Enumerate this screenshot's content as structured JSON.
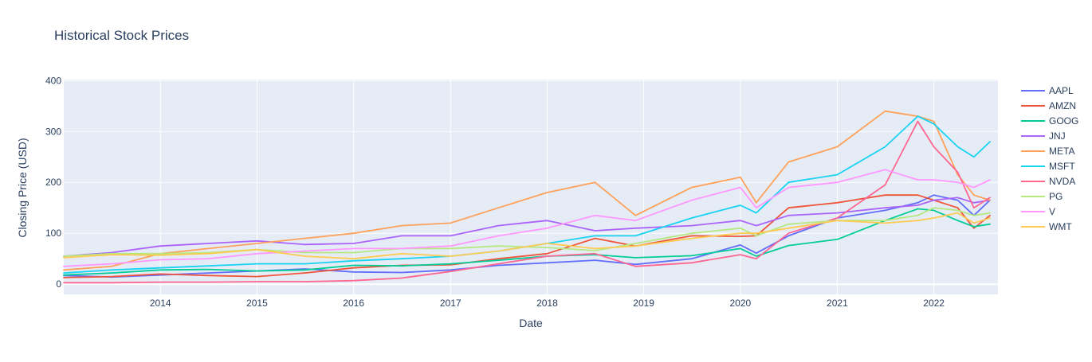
{
  "chart_data": {
    "type": "line",
    "title": "Historical Stock Prices",
    "xlabel": "Date",
    "ylabel": "Closing Price (USD)",
    "xlim": [
      "2013-01-01",
      "2022-08-31"
    ],
    "ylim": [
      -20,
      402
    ],
    "x_ticks": [
      "2014",
      "2015",
      "2016",
      "2017",
      "2018",
      "2019",
      "2020",
      "2021",
      "2022"
    ],
    "y_ticks": [
      0,
      100,
      200,
      300,
      400
    ],
    "grid": true,
    "legend_position": "right",
    "x_dates": [
      "2013-01",
      "2013-07",
      "2014-01",
      "2014-07",
      "2015-01",
      "2015-07",
      "2016-01",
      "2016-07",
      "2017-01",
      "2017-07",
      "2018-01",
      "2018-07",
      "2018-12",
      "2019-07",
      "2020-01",
      "2020-03",
      "2020-07",
      "2021-01",
      "2021-07",
      "2021-11",
      "2022-01",
      "2022-04",
      "2022-06",
      "2022-08"
    ],
    "series": [
      {
        "name": "AAPL",
        "color": "#636efa",
        "values": [
          17,
          14,
          18,
          22,
          26,
          30,
          24,
          23,
          28,
          37,
          42,
          47,
          39,
          50,
          77,
          61,
          95,
          130,
          145,
          160,
          175,
          165,
          135,
          165
        ]
      },
      {
        "name": "AMZN",
        "color": "#ef553b",
        "values": [
          13,
          15,
          20,
          17,
          15,
          22,
          32,
          37,
          38,
          50,
          60,
          90,
          75,
          95,
          94,
          95,
          150,
          160,
          175,
          175,
          165,
          150,
          110,
          135
        ]
      },
      {
        "name": "GOOG",
        "color": "#00cc96",
        "values": [
          18,
          22,
          28,
          29,
          26,
          28,
          37,
          36,
          40,
          47,
          55,
          58,
          52,
          56,
          70,
          55,
          76,
          88,
          125,
          148,
          145,
          125,
          113,
          118
        ]
      },
      {
        "name": "JNJ",
        "color": "#ab63fa",
        "values": [
          55,
          62,
          75,
          80,
          85,
          78,
          80,
          95,
          95,
          115,
          125,
          105,
          110,
          115,
          125,
          115,
          135,
          140,
          150,
          155,
          165,
          170,
          160,
          165
        ]
      },
      {
        "name": "META",
        "color": "#FFA15A",
        "values": [
          28,
          35,
          60,
          70,
          80,
          90,
          100,
          115,
          120,
          150,
          180,
          200,
          135,
          190,
          210,
          160,
          240,
          270,
          340,
          330,
          320,
          215,
          175,
          165
        ]
      },
      {
        "name": "MSFT",
        "color": "#19d3f3",
        "values": [
          22,
          28,
          32,
          36,
          40,
          40,
          46,
          50,
          55,
          65,
          80,
          95,
          95,
          130,
          155,
          140,
          200,
          215,
          270,
          330,
          315,
          270,
          250,
          280
        ]
      },
      {
        "name": "NVDA",
        "color": "#FF6692",
        "values": [
          3,
          3,
          4,
          4,
          5,
          5,
          7,
          12,
          25,
          40,
          55,
          60,
          35,
          42,
          58,
          50,
          100,
          130,
          195,
          320,
          270,
          220,
          150,
          170
        ]
      },
      {
        "name": "PG",
        "color": "#B6E880",
        "values": [
          55,
          60,
          60,
          62,
          68,
          62,
          62,
          70,
          70,
          75,
          72,
          66,
          80,
          100,
          110,
          95,
          118,
          125,
          125,
          135,
          150,
          145,
          135,
          140
        ]
      },
      {
        "name": "V",
        "color": "#FF97FF",
        "values": [
          35,
          40,
          48,
          50,
          60,
          65,
          70,
          70,
          75,
          95,
          110,
          135,
          125,
          165,
          190,
          150,
          190,
          200,
          225,
          205,
          205,
          200,
          190,
          205
        ]
      },
      {
        "name": "WMT",
        "color": "#FECB52",
        "values": [
          52,
          58,
          57,
          60,
          68,
          55,
          50,
          60,
          55,
          65,
          80,
          70,
          75,
          90,
          100,
          100,
          110,
          125,
          120,
          125,
          130,
          140,
          120,
          130
        ]
      }
    ]
  }
}
